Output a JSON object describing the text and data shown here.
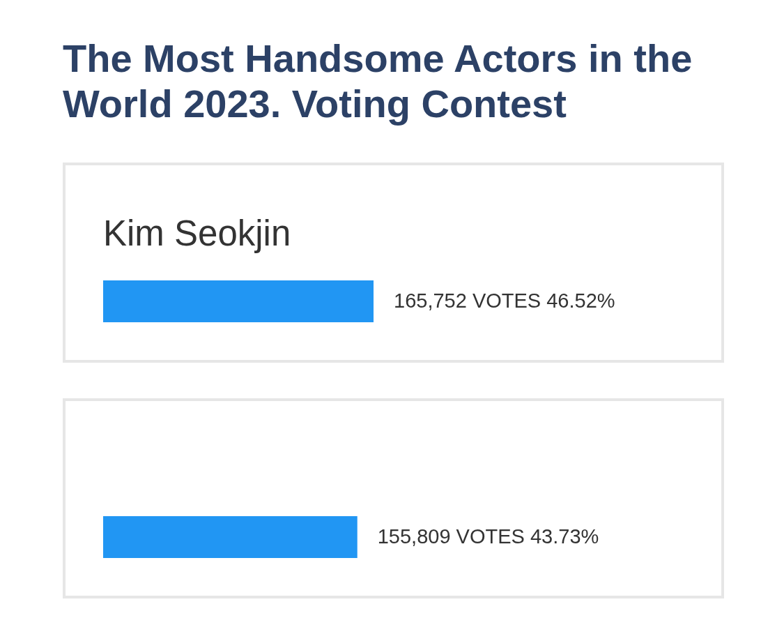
{
  "chart_data": {
    "type": "bar",
    "orientation": "horizontal",
    "title": "The Most Handsome Actors in the World 2023. Voting Contest",
    "categories": [
      "Kim Seokjin",
      null
    ],
    "values": [
      46.52,
      43.73
    ],
    "value_labels": [
      "165,752 VOTES 46.52%",
      "155,809 VOTES 43.73%"
    ],
    "color": "#2196f3"
  }
}
